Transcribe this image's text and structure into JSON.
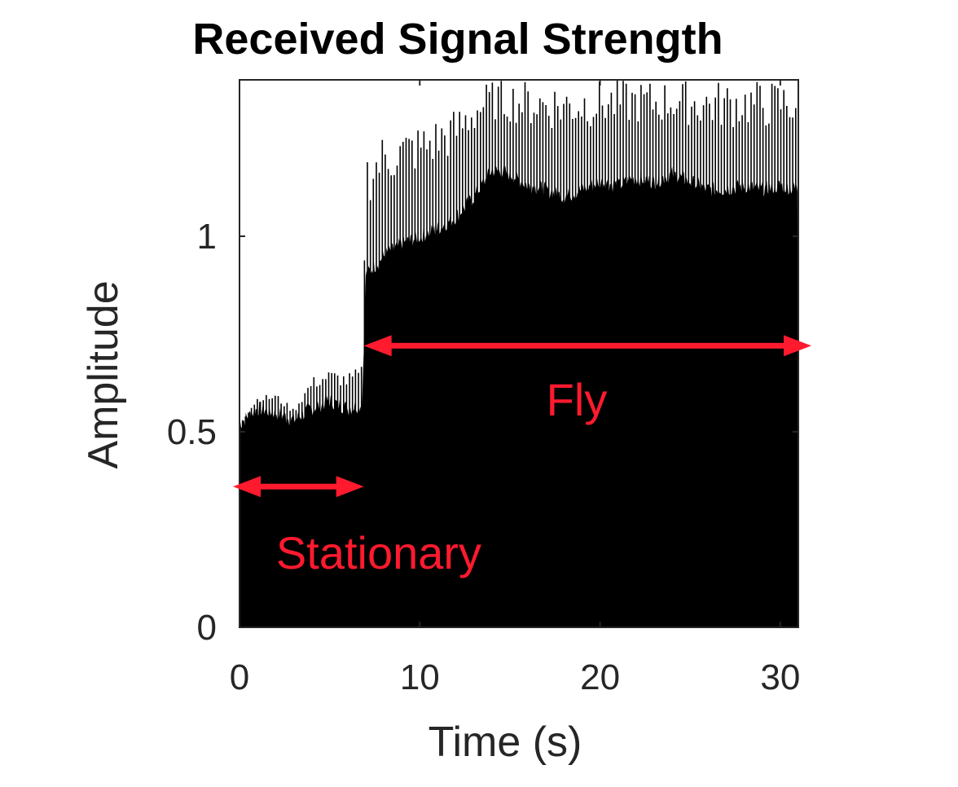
{
  "chart_data": {
    "type": "area",
    "title": "Received Signal Strength",
    "xlabel": "Time (s)",
    "ylabel": "Amplitude",
    "xlim": [
      0,
      31
    ],
    "ylim": [
      0,
      1.4
    ],
    "xticks": [
      0,
      10,
      20,
      30
    ],
    "yticks": [
      0,
      0.5,
      1
    ],
    "xtick_labels": [
      "0",
      "10",
      "20",
      "30"
    ],
    "ytick_labels": [
      "0",
      "0.5",
      "1"
    ],
    "grid": false,
    "series": [
      {
        "color": "#000000",
        "envelope_x": [
          0,
          1,
          2,
          3,
          4,
          5,
          6,
          6.8,
          7.0,
          8,
          9,
          10,
          11,
          12,
          13,
          14,
          15,
          16,
          17,
          18,
          19,
          20,
          21,
          22,
          23,
          24,
          25,
          26,
          27,
          28,
          29,
          30,
          31
        ],
        "envelope_y": [
          0.52,
          0.56,
          0.55,
          0.53,
          0.56,
          0.58,
          0.56,
          0.57,
          0.9,
          0.95,
          0.98,
          1.0,
          1.02,
          1.05,
          1.1,
          1.17,
          1.16,
          1.13,
          1.12,
          1.1,
          1.12,
          1.14,
          1.13,
          1.15,
          1.14,
          1.16,
          1.14,
          1.12,
          1.12,
          1.13,
          1.12,
          1.13,
          1.12
        ],
        "peak_y": [
          0.52,
          0.59,
          0.6,
          0.56,
          0.64,
          0.66,
          0.65,
          0.67,
          1.22,
          1.27,
          1.28,
          1.29,
          1.31,
          1.33,
          1.38,
          1.4,
          1.4,
          1.4,
          1.4,
          1.4,
          1.4,
          1.4,
          1.4,
          1.4,
          1.4,
          1.4,
          1.4,
          1.4,
          1.4,
          1.4,
          1.4,
          1.4,
          1.4
        ]
      }
    ],
    "annotations": [
      {
        "text": "Stationary",
        "x_range": [
          0,
          6.9
        ],
        "y": 0.36,
        "color": "#ff1a2e"
      },
      {
        "text": "Fly",
        "x_range": [
          6.9,
          31.7
        ],
        "y": 0.72,
        "color": "#ff1a2e"
      }
    ]
  }
}
